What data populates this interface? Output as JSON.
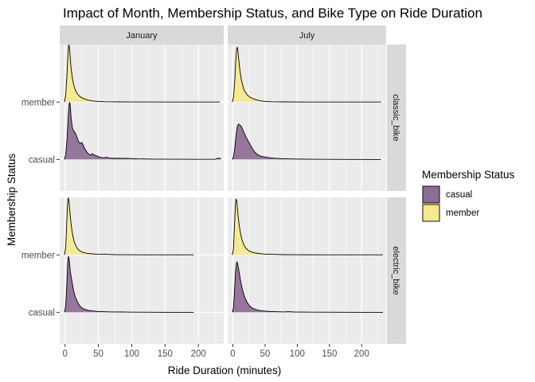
{
  "chart_data": {
    "type": "area",
    "subtype": "faceted ridgeline density",
    "title": "Impact of Month, Membership Status, and Bike Type on Ride Duration",
    "xlabel": "Ride Duration (minutes)",
    "ylabel": "Membership Status",
    "xlim": [
      -8,
      238
    ],
    "xticks": [
      0,
      50,
      100,
      150,
      200
    ],
    "ycategories": [
      "casual",
      "member"
    ],
    "facet_columns": [
      "January",
      "July"
    ],
    "facet_rows": [
      "classic_bike",
      "electric_bike"
    ],
    "legend": {
      "title": "Membership Status",
      "position": "right",
      "entries": [
        {
          "label": "casual",
          "color": "#8c6d94"
        },
        {
          "label": "member",
          "color": "#f4e98b"
        }
      ]
    },
    "colors": {
      "casual": "#8c6d94",
      "member": "#f4e98b",
      "panel_background": "#ebebeb",
      "strip_background": "#d9d9d9",
      "grid": "#ffffff"
    },
    "grid": true,
    "panels": [
      {
        "column": "January",
        "row": "classic_bike",
        "series": [
          {
            "group": "casual",
            "x_max": 234,
            "points": [
              [
                -1,
                0
              ],
              [
                1,
                0.08
              ],
              [
                3,
                0.35
              ],
              [
                4.5,
                0.7
              ],
              [
                6,
                0.96
              ],
              [
                7,
                1
              ],
              [
                8,
                0.92
              ],
              [
                9,
                0.75
              ],
              [
                10,
                0.64
              ],
              [
                11,
                0.56
              ],
              [
                12,
                0.52
              ],
              [
                13,
                0.5
              ],
              [
                15,
                0.47
              ],
              [
                17,
                0.42
              ],
              [
                19,
                0.35
              ],
              [
                21,
                0.3
              ],
              [
                23,
                0.28
              ],
              [
                25,
                0.3
              ],
              [
                27,
                0.26
              ],
              [
                29,
                0.2
              ],
              [
                31,
                0.16
              ],
              [
                33,
                0.13
              ],
              [
                35,
                0.1
              ],
              [
                38,
                0.08
              ],
              [
                41,
                0.1
              ],
              [
                44,
                0.08
              ],
              [
                48,
                0.06
              ],
              [
                52,
                0.04
              ],
              [
                58,
                0.03
              ],
              [
                62,
                0.04
              ],
              [
                66,
                0.025
              ],
              [
                75,
                0.02
              ],
              [
                85,
                0.02
              ],
              [
                95,
                0.018
              ],
              [
                110,
                0.012
              ],
              [
                130,
                0.008
              ],
              [
                160,
                0.005
              ],
              [
                200,
                0.003
              ],
              [
                225,
                0.004
              ],
              [
                230,
                0.025
              ],
              [
                234,
                0.01
              ]
            ]
          },
          {
            "group": "member",
            "x_max": 232,
            "points": [
              [
                -1,
                0
              ],
              [
                1,
                0.12
              ],
              [
                3,
                0.5
              ],
              [
                4.5,
                0.88
              ],
              [
                5.5,
                1
              ],
              [
                6.5,
                0.97
              ],
              [
                7.5,
                0.82
              ],
              [
                9,
                0.6
              ],
              [
                11,
                0.42
              ],
              [
                13,
                0.3
              ],
              [
                15,
                0.22
              ],
              [
                18,
                0.15
              ],
              [
                22,
                0.1
              ],
              [
                26,
                0.07
              ],
              [
                30,
                0.05
              ],
              [
                35,
                0.035
              ],
              [
                42,
                0.02
              ],
              [
                50,
                0.012
              ],
              [
                60,
                0.007
              ],
              [
                80,
                0.004
              ],
              [
                100,
                0.003
              ],
              [
                150,
                0.002
              ],
              [
                200,
                0.001
              ],
              [
                232,
                0.001
              ]
            ]
          }
        ]
      },
      {
        "column": "July",
        "row": "classic_bike",
        "series": [
          {
            "group": "casual",
            "x_max": 230,
            "points": [
              [
                -1,
                0
              ],
              [
                1,
                0.05
              ],
              [
                3,
                0.2
              ],
              [
                5,
                0.42
              ],
              [
                7,
                0.58
              ],
              [
                9,
                0.62
              ],
              [
                11,
                0.6
              ],
              [
                13,
                0.58
              ],
              [
                15,
                0.53
              ],
              [
                17,
                0.48
              ],
              [
                19,
                0.43
              ],
              [
                21,
                0.38
              ],
              [
                23,
                0.34
              ],
              [
                25,
                0.3
              ],
              [
                28,
                0.24
              ],
              [
                31,
                0.18
              ],
              [
                34,
                0.13
              ],
              [
                38,
                0.09
              ],
              [
                42,
                0.065
              ],
              [
                47,
                0.05
              ],
              [
                52,
                0.04
              ],
              [
                58,
                0.03
              ],
              [
                66,
                0.022
              ],
              [
                75,
                0.016
              ],
              [
                90,
                0.01
              ],
              [
                110,
                0.006
              ],
              [
                140,
                0.004
              ],
              [
                180,
                0.002
              ],
              [
                230,
                0.001
              ]
            ]
          },
          {
            "group": "member",
            "x_max": 230,
            "points": [
              [
                -1,
                0
              ],
              [
                1,
                0.08
              ],
              [
                3,
                0.38
              ],
              [
                4.5,
                0.72
              ],
              [
                6,
                0.93
              ],
              [
                7,
                0.96
              ],
              [
                8,
                0.88
              ],
              [
                9.5,
                0.7
              ],
              [
                11,
                0.55
              ],
              [
                13,
                0.4
              ],
              [
                15,
                0.3
              ],
              [
                18,
                0.2
              ],
              [
                22,
                0.13
              ],
              [
                26,
                0.09
              ],
              [
                30,
                0.065
              ],
              [
                35,
                0.045
              ],
              [
                40,
                0.03
              ],
              [
                45,
                0.02
              ],
              [
                50,
                0.012
              ],
              [
                60,
                0.007
              ],
              [
                80,
                0.004
              ],
              [
                120,
                0.002
              ],
              [
                180,
                0.001
              ],
              [
                230,
                0.001
              ]
            ]
          }
        ]
      },
      {
        "column": "January",
        "row": "electric_bike",
        "series": [
          {
            "group": "casual",
            "x_max": 193,
            "points": [
              [
                -1,
                0
              ],
              [
                1,
                0.1
              ],
              [
                2.5,
                0.45
              ],
              [
                4,
                0.85
              ],
              [
                5,
                0.98
              ],
              [
                6,
                0.94
              ],
              [
                7,
                0.82
              ],
              [
                8,
                0.7
              ],
              [
                9.5,
                0.6
              ],
              [
                11,
                0.5
              ],
              [
                12.5,
                0.4
              ],
              [
                14,
                0.32
              ],
              [
                16,
                0.25
              ],
              [
                18,
                0.2
              ],
              [
                20,
                0.15
              ],
              [
                23,
                0.1
              ],
              [
                26,
                0.07
              ],
              [
                30,
                0.05
              ],
              [
                35,
                0.035
              ],
              [
                40,
                0.025
              ],
              [
                46,
                0.018
              ],
              [
                52,
                0.014
              ],
              [
                60,
                0.01
              ],
              [
                70,
                0.008
              ],
              [
                85,
                0.006
              ],
              [
                100,
                0.004
              ],
              [
                130,
                0.002
              ],
              [
                160,
                0.001
              ],
              [
                193,
                0.001
              ]
            ]
          },
          {
            "group": "member",
            "x_max": 193,
            "points": [
              [
                -1,
                0
              ],
              [
                1,
                0.12
              ],
              [
                2.5,
                0.55
              ],
              [
                4,
                0.92
              ],
              [
                5,
                1
              ],
              [
                6,
                0.93
              ],
              [
                7,
                0.78
              ],
              [
                8.5,
                0.6
              ],
              [
                10,
                0.45
              ],
              [
                12,
                0.32
              ],
              [
                14,
                0.22
              ],
              [
                17,
                0.14
              ],
              [
                20,
                0.09
              ],
              [
                24,
                0.06
              ],
              [
                28,
                0.04
              ],
              [
                33,
                0.028
              ],
              [
                40,
                0.018
              ],
              [
                48,
                0.012
              ],
              [
                55,
                0.01
              ],
              [
                60,
                0.014
              ],
              [
                65,
                0.008
              ],
              [
                75,
                0.005
              ],
              [
                90,
                0.003
              ],
              [
                110,
                0.002
              ],
              [
                140,
                0.001
              ],
              [
                193,
                0.001
              ]
            ]
          }
        ]
      },
      {
        "column": "July",
        "row": "electric_bike",
        "series": [
          {
            "group": "casual",
            "x_max": 233,
            "points": [
              [
                -1,
                0
              ],
              [
                1,
                0.08
              ],
              [
                2.5,
                0.36
              ],
              [
                4,
                0.68
              ],
              [
                5.5,
                0.85
              ],
              [
                6.5,
                0.88
              ],
              [
                7.5,
                0.85
              ],
              [
                9,
                0.75
              ],
              [
                10.5,
                0.65
              ],
              [
                12,
                0.55
              ],
              [
                14,
                0.44
              ],
              [
                16,
                0.35
              ],
              [
                18,
                0.28
              ],
              [
                20,
                0.22
              ],
              [
                23,
                0.16
              ],
              [
                26,
                0.11
              ],
              [
                30,
                0.075
              ],
              [
                35,
                0.05
              ],
              [
                40,
                0.035
              ],
              [
                46,
                0.025
              ],
              [
                52,
                0.018
              ],
              [
                60,
                0.014
              ],
              [
                70,
                0.01
              ],
              [
                80,
                0.008
              ],
              [
                86,
                0.011
              ],
              [
                95,
                0.006
              ],
              [
                120,
                0.003
              ],
              [
                160,
                0.002
              ],
              [
                200,
                0.001
              ],
              [
                233,
                0.001
              ]
            ]
          },
          {
            "group": "member",
            "x_max": 233,
            "points": [
              [
                -1,
                0
              ],
              [
                1,
                0.1
              ],
              [
                2.5,
                0.5
              ],
              [
                4,
                0.88
              ],
              [
                5,
                0.98
              ],
              [
                6,
                0.95
              ],
              [
                7,
                0.82
              ],
              [
                8.5,
                0.65
              ],
              [
                10,
                0.5
              ],
              [
                12,
                0.37
              ],
              [
                14,
                0.27
              ],
              [
                17,
                0.18
              ],
              [
                20,
                0.12
              ],
              [
                24,
                0.08
              ],
              [
                28,
                0.055
              ],
              [
                33,
                0.038
              ],
              [
                40,
                0.025
              ],
              [
                48,
                0.016
              ],
              [
                56,
                0.012
              ],
              [
                66,
                0.008
              ],
              [
                80,
                0.005
              ],
              [
                100,
                0.003
              ],
              [
                140,
                0.002
              ],
              [
                190,
                0.001
              ],
              [
                233,
                0.001
              ]
            ]
          }
        ]
      }
    ]
  }
}
